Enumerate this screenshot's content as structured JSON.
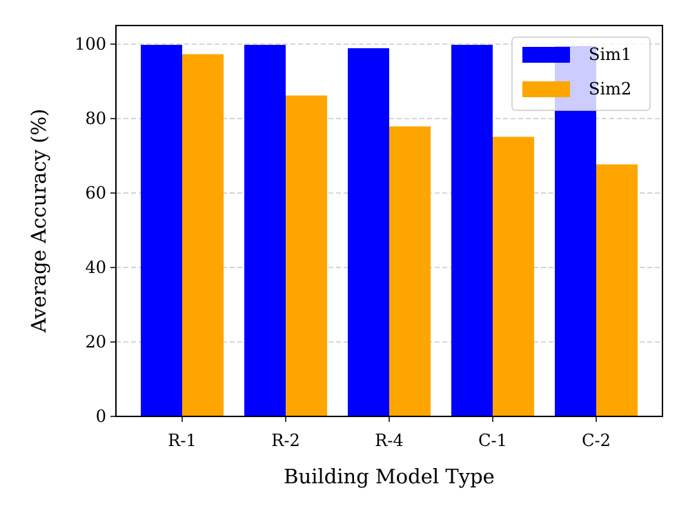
{
  "chart_data": {
    "type": "bar",
    "title": "",
    "xlabel": "Building Model Type",
    "ylabel": "Average Accuracy (%)",
    "categories": [
      "R-1",
      "R-2",
      "R-4",
      "C-1",
      "C-2"
    ],
    "series": [
      {
        "name": "Sim1",
        "color": "#0000ff",
        "values": [
          99.8,
          99.8,
          98.9,
          99.8,
          99.5
        ]
      },
      {
        "name": "Sim2",
        "color": "#ffa500",
        "values": [
          97.3,
          86.2,
          77.9,
          75.1,
          67.7
        ]
      }
    ],
    "ylim": [
      0,
      105
    ],
    "yticks": [
      0,
      20,
      40,
      60,
      80,
      100
    ],
    "grid": "horizontal dashed",
    "legend_position": "top-right"
  }
}
